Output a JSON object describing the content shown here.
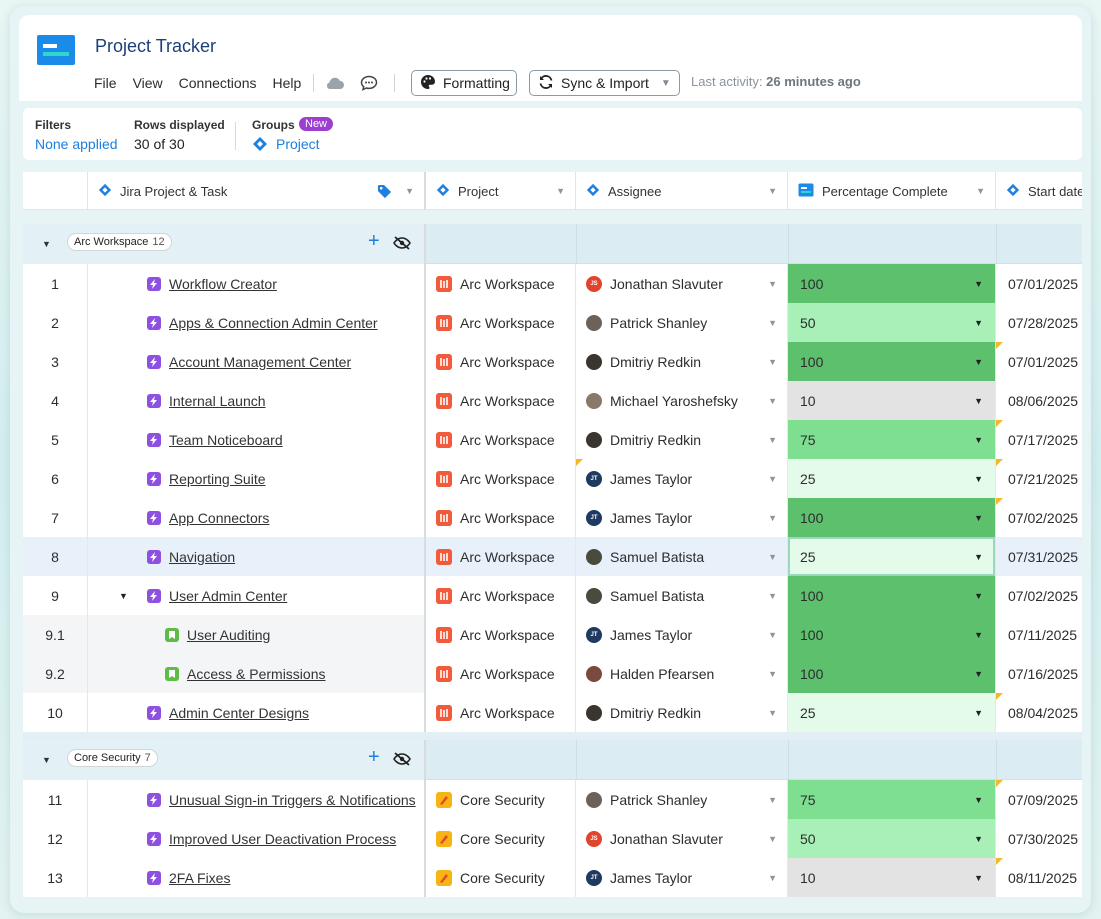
{
  "app": {
    "title": "Project Tracker"
  },
  "menu": [
    "File",
    "View",
    "Connections",
    "Help"
  ],
  "toolbar": {
    "formatting_label": "Formatting",
    "sync_label": "Sync & Import",
    "last_activity_label": "Last activity:",
    "last_activity_value": "26 minutes ago"
  },
  "filters": {
    "filters_label": "Filters",
    "filters_value": "None applied",
    "rows_label": "Rows displayed",
    "rows_value": "30 of 30",
    "groups_label": "Groups",
    "groups_badge": "New",
    "groups_value": "Project"
  },
  "columns": {
    "task": "Jira Project & Task",
    "project": "Project",
    "assignee": "Assignee",
    "percent": "Percentage Complete",
    "start": "Start date"
  },
  "colors": {
    "pct_100": "#5cc06c",
    "pct_75": "#7ddf8f",
    "pct_50": "#a8f0b8",
    "pct_25": "#e3fbe8",
    "pct_10": "#e3e3e3",
    "accent": "#1a8be8"
  },
  "groups": [
    {
      "name": "Arc Workspace",
      "count": "12",
      "rows": [
        {
          "num": "1",
          "task": "Workflow Creator",
          "type": "epic",
          "project": "Arc Workspace",
          "assignee": "Jonathan Slavuter",
          "avatar": "JS",
          "avatar_color": "#e0442c",
          "pct": "100",
          "date": "07/01/2025"
        },
        {
          "num": "2",
          "task": "Apps & Connection Admin Center",
          "type": "epic",
          "project": "Arc Workspace",
          "assignee": "Patrick Shanley",
          "avatar": "",
          "avatar_color": "#6d625a",
          "pct": "50",
          "date": "07/28/2025"
        },
        {
          "num": "3",
          "task": "Account Management Center",
          "type": "epic",
          "project": "Arc Workspace",
          "assignee": "Dmitriy Redkin",
          "avatar": "",
          "avatar_color": "#3b3530",
          "pct": "100",
          "date": "07/01/2025",
          "date_flag": true
        },
        {
          "num": "4",
          "task": "Internal Launch",
          "type": "epic",
          "project": "Arc Workspace",
          "assignee": "Michael Yaroshefsky",
          "avatar": "",
          "avatar_color": "#8a7868",
          "pct": "10",
          "date": "08/06/2025"
        },
        {
          "num": "5",
          "task": "Team Noticeboard",
          "type": "epic",
          "project": "Arc Workspace",
          "assignee": "Dmitriy Redkin",
          "avatar": "",
          "avatar_color": "#3b3530",
          "pct": "75",
          "date": "07/17/2025",
          "date_flag": true
        },
        {
          "num": "6",
          "task": "Reporting Suite",
          "type": "epic",
          "project": "Arc Workspace",
          "assignee": "James Taylor",
          "avatar": "JT",
          "avatar_color": "#1f3a60",
          "pct": "25",
          "date": "07/21/2025",
          "assg_flag": true,
          "date_flag": true
        },
        {
          "num": "7",
          "task": "App Connectors",
          "type": "epic",
          "project": "Arc Workspace",
          "assignee": "James Taylor",
          "avatar": "JT",
          "avatar_color": "#1f3a60",
          "pct": "100",
          "date": "07/02/2025",
          "date_flag": true
        },
        {
          "num": "8",
          "task": "Navigation",
          "type": "epic",
          "project": "Arc Workspace",
          "assignee": "Samuel Batista",
          "avatar": "",
          "avatar_color": "#4a4a3e",
          "pct": "25",
          "date": "07/31/2025",
          "selected": true
        },
        {
          "num": "9",
          "task": "User Admin Center",
          "type": "epic",
          "project": "Arc Workspace",
          "assignee": "Samuel Batista",
          "avatar": "",
          "avatar_color": "#4a4a3e",
          "pct": "100",
          "date": "07/02/2025",
          "expand": true
        },
        {
          "num": "9.1",
          "task": "User Auditing",
          "type": "story",
          "project": "Arc Workspace",
          "assignee": "James Taylor",
          "avatar": "JT",
          "avatar_color": "#1f3a60",
          "pct": "100",
          "date": "07/11/2025",
          "sub": true
        },
        {
          "num": "9.2",
          "task": "Access & Permissions",
          "type": "story",
          "project": "Arc Workspace",
          "assignee": "Halden Pfearsen",
          "avatar": "",
          "avatar_color": "#7a4a3e",
          "pct": "100",
          "date": "07/16/2025",
          "sub": true
        },
        {
          "num": "10",
          "task": "Admin Center Designs",
          "type": "epic",
          "project": "Arc Workspace",
          "assignee": "Dmitriy Redkin",
          "avatar": "",
          "avatar_color": "#3b3530",
          "pct": "25",
          "date": "08/04/2025",
          "date_flag": true
        }
      ]
    },
    {
      "name": "Core Security",
      "count": "7",
      "rows": [
        {
          "num": "11",
          "task": "Unusual Sign-in Triggers & Notifications",
          "type": "epic",
          "project": "Core Security",
          "assignee": "Patrick Shanley",
          "avatar": "",
          "avatar_color": "#6d625a",
          "pct": "75",
          "date": "07/09/2025",
          "date_flag": true
        },
        {
          "num": "12",
          "task": "Improved User Deactivation Process",
          "type": "epic",
          "project": "Core Security",
          "assignee": "Jonathan Slavuter",
          "avatar": "JS",
          "avatar_color": "#e0442c",
          "pct": "50",
          "date": "07/30/2025"
        },
        {
          "num": "13",
          "task": "2FA Fixes",
          "type": "epic",
          "project": "Core Security",
          "assignee": "James Taylor",
          "avatar": "JT",
          "avatar_color": "#1f3a60",
          "pct": "10",
          "date": "08/11/2025",
          "date_flag": true
        }
      ]
    }
  ]
}
